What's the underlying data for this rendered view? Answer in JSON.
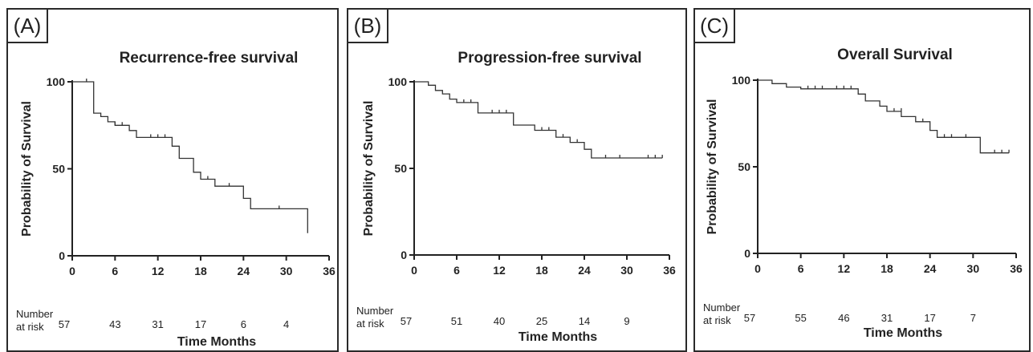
{
  "chart_data": [
    {
      "type": "line",
      "label": "(A)",
      "title": "Recurrence-free survival",
      "xlabel": "Time Months",
      "ylabel": "Probability of Survival",
      "xlim": [
        0,
        36
      ],
      "ylim": [
        0,
        100
      ],
      "xticks": [
        0,
        6,
        12,
        18,
        24,
        30,
        36
      ],
      "yticks": [
        0,
        50,
        100
      ],
      "steps": [
        [
          0,
          100
        ],
        [
          3,
          100
        ],
        [
          3,
          82
        ],
        [
          4,
          82
        ],
        [
          4,
          80
        ],
        [
          5,
          80
        ],
        [
          5,
          77
        ],
        [
          6,
          77
        ],
        [
          6,
          75
        ],
        [
          8,
          75
        ],
        [
          8,
          72
        ],
        [
          9,
          72
        ],
        [
          9,
          68
        ],
        [
          14,
          68
        ],
        [
          14,
          63
        ],
        [
          15,
          63
        ],
        [
          15,
          56
        ],
        [
          17,
          56
        ],
        [
          17,
          48
        ],
        [
          18,
          48
        ],
        [
          18,
          44
        ],
        [
          20,
          44
        ],
        [
          20,
          40
        ],
        [
          24,
          40
        ],
        [
          24,
          33
        ],
        [
          25,
          33
        ],
        [
          25,
          27
        ],
        [
          33,
          27
        ],
        [
          33,
          13
        ]
      ],
      "censored": [
        [
          2,
          100
        ],
        [
          6,
          75
        ],
        [
          7,
          75
        ],
        [
          11,
          68
        ],
        [
          12,
          68
        ],
        [
          13,
          68
        ],
        [
          19,
          44
        ],
        [
          22,
          40
        ],
        [
          29,
          27
        ]
      ],
      "risk_title": [
        "Number",
        "at risk"
      ],
      "risk": [
        {
          "x": 0,
          "n": "57"
        },
        {
          "x": 6,
          "n": "43"
        },
        {
          "x": 12,
          "n": "31"
        },
        {
          "x": 18,
          "n": "17"
        },
        {
          "x": 24,
          "n": "6"
        },
        {
          "x": 30,
          "n": "4"
        }
      ]
    },
    {
      "type": "line",
      "label": "(B)",
      "title": "Progression-free survival",
      "xlabel": "Time Months",
      "ylabel": "Probability of Survival",
      "xlim": [
        0,
        36
      ],
      "ylim": [
        0,
        100
      ],
      "xticks": [
        0,
        6,
        12,
        18,
        24,
        30,
        36
      ],
      "yticks": [
        0,
        50,
        100
      ],
      "steps": [
        [
          0,
          100
        ],
        [
          2,
          100
        ],
        [
          2,
          98
        ],
        [
          3,
          98
        ],
        [
          3,
          95
        ],
        [
          4,
          95
        ],
        [
          4,
          93
        ],
        [
          5,
          93
        ],
        [
          5,
          90
        ],
        [
          6,
          90
        ],
        [
          6,
          88
        ],
        [
          9,
          88
        ],
        [
          9,
          82
        ],
        [
          14,
          82
        ],
        [
          14,
          75
        ],
        [
          17,
          75
        ],
        [
          17,
          72
        ],
        [
          20,
          72
        ],
        [
          20,
          68
        ],
        [
          22,
          68
        ],
        [
          22,
          65
        ],
        [
          24,
          65
        ],
        [
          24,
          61
        ],
        [
          25,
          61
        ],
        [
          25,
          56
        ],
        [
          35,
          56
        ]
      ],
      "censored": [
        [
          7,
          88
        ],
        [
          8,
          88
        ],
        [
          11,
          82
        ],
        [
          12,
          82
        ],
        [
          13,
          82
        ],
        [
          18,
          72
        ],
        [
          19,
          72
        ],
        [
          21,
          68
        ],
        [
          23,
          65
        ],
        [
          27,
          56
        ],
        [
          29,
          56
        ],
        [
          33,
          56
        ],
        [
          34,
          56
        ],
        [
          35,
          56
        ]
      ],
      "risk_title": [
        "Number",
        "at risk"
      ],
      "risk": [
        {
          "x": 0,
          "n": "57"
        },
        {
          "x": 6,
          "n": "51"
        },
        {
          "x": 12,
          "n": "40"
        },
        {
          "x": 18,
          "n": "25"
        },
        {
          "x": 24,
          "n": "14"
        },
        {
          "x": 30,
          "n": "9"
        }
      ]
    },
    {
      "type": "line",
      "label": "(C)",
      "title": "Overall Survival",
      "xlabel": "Time Months",
      "ylabel": "Probability of Survival",
      "xlim": [
        0,
        36
      ],
      "ylim": [
        0,
        100
      ],
      "xticks": [
        0,
        6,
        12,
        18,
        24,
        30,
        36
      ],
      "yticks": [
        0,
        50,
        100
      ],
      "steps": [
        [
          0,
          100
        ],
        [
          2,
          100
        ],
        [
          2,
          98
        ],
        [
          4,
          98
        ],
        [
          4,
          96
        ],
        [
          6,
          96
        ],
        [
          6,
          95
        ],
        [
          14,
          95
        ],
        [
          14,
          92
        ],
        [
          15,
          92
        ],
        [
          15,
          88
        ],
        [
          17,
          88
        ],
        [
          17,
          85
        ],
        [
          18,
          85
        ],
        [
          18,
          82
        ],
        [
          20,
          82
        ],
        [
          20,
          79
        ],
        [
          22,
          79
        ],
        [
          22,
          76
        ],
        [
          24,
          76
        ],
        [
          24,
          71
        ],
        [
          25,
          71
        ],
        [
          25,
          67
        ],
        [
          31,
          67
        ],
        [
          31,
          58
        ],
        [
          35,
          58
        ]
      ],
      "censored": [
        [
          7,
          95
        ],
        [
          8,
          95
        ],
        [
          9,
          95
        ],
        [
          11,
          95
        ],
        [
          12,
          95
        ],
        [
          13,
          95
        ],
        [
          19,
          82
        ],
        [
          20,
          82
        ],
        [
          23,
          76
        ],
        [
          26,
          67
        ],
        [
          27,
          67
        ],
        [
          29,
          67
        ],
        [
          33,
          58
        ],
        [
          34,
          58
        ],
        [
          35,
          58
        ]
      ],
      "risk_title": [
        "Number",
        "at risk"
      ],
      "risk": [
        {
          "x": 0,
          "n": "57"
        },
        {
          "x": 6,
          "n": "55"
        },
        {
          "x": 12,
          "n": "46"
        },
        {
          "x": 18,
          "n": "31"
        },
        {
          "x": 24,
          "n": "17"
        },
        {
          "x": 30,
          "n": "7"
        }
      ]
    }
  ]
}
